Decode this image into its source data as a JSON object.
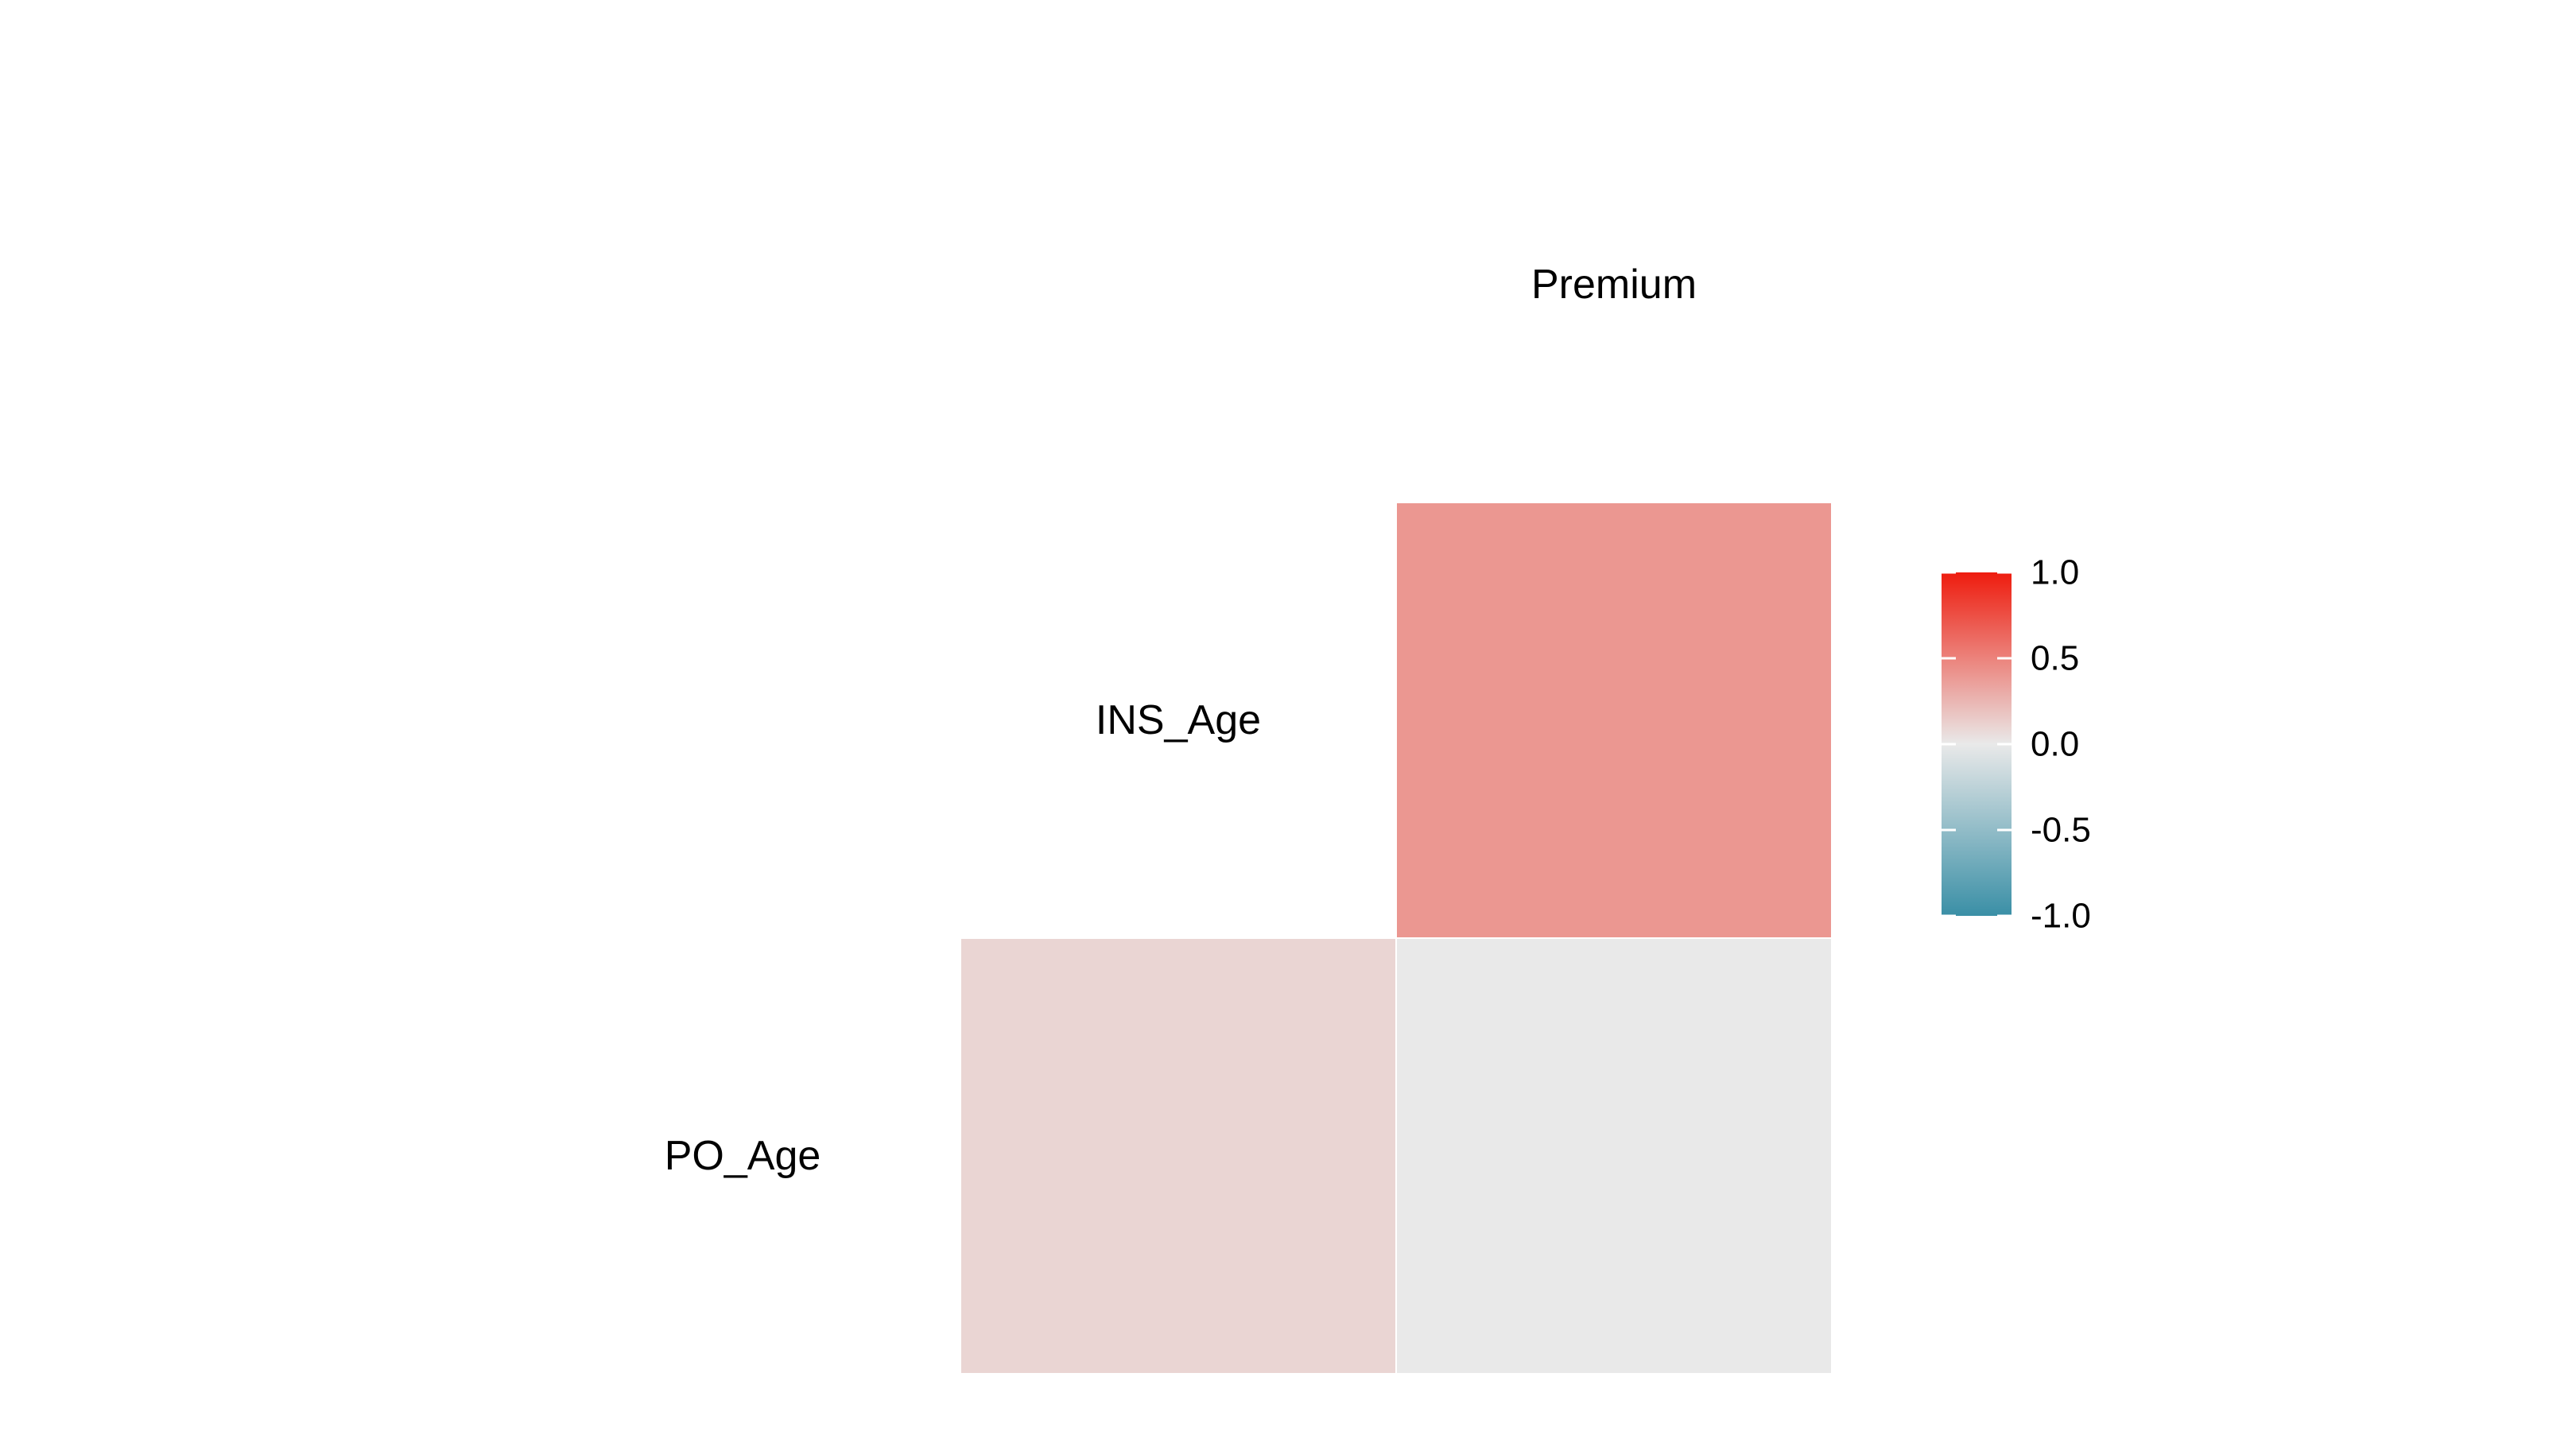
{
  "chart_data": {
    "type": "heatmap",
    "title": "",
    "xlabel": "",
    "ylabel": "",
    "variables": [
      "PO_Age",
      "INS_Age",
      "Premium"
    ],
    "cells": [
      {
        "row": "PO_Age",
        "col": "INS_Age",
        "value": 0.1
      },
      {
        "row": "PO_Age",
        "col": "Premium",
        "value": 0.0
      },
      {
        "row": "INS_Age",
        "col": "Premium",
        "value": 0.4
      }
    ],
    "colorbar": {
      "ticks": [
        "1.0",
        "0.5",
        "0.0",
        "-0.5",
        "-1.0"
      ],
      "tick_values": [
        1.0,
        0.5,
        0.0,
        -0.5,
        -1.0
      ],
      "range": [
        -1.0,
        1.0
      ],
      "low_color": "#3a8fa6",
      "mid_color": "#e9e9e9",
      "high_color": "#ee1c0e"
    },
    "grid": false,
    "legend_placement": "right"
  }
}
